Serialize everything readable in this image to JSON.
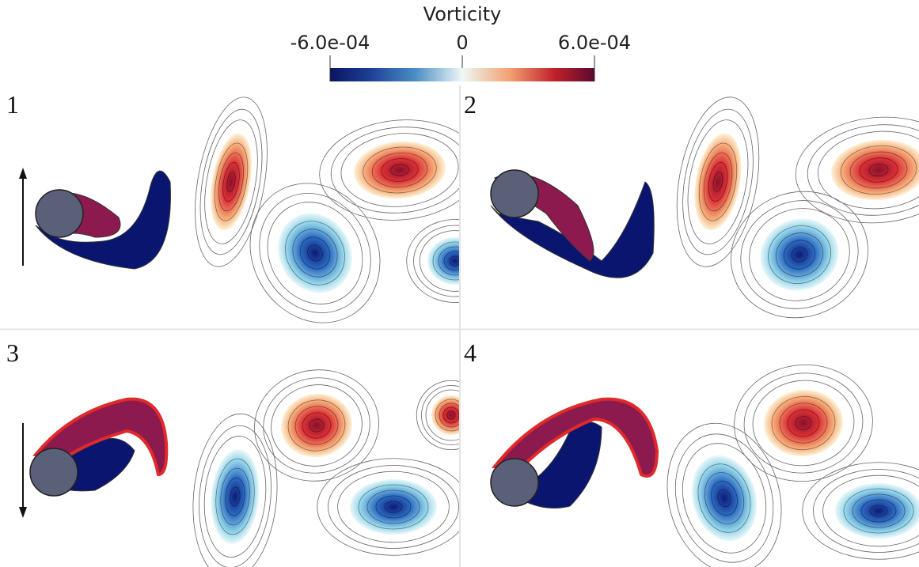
{
  "colorbar": {
    "title": "Vorticity",
    "ticks": [
      "-6.0e-04",
      "0",
      "6.0e-04"
    ]
  },
  "panels": [
    {
      "label": "1"
    },
    {
      "label": "2"
    },
    {
      "label": "3"
    },
    {
      "label": "4"
    }
  ]
}
